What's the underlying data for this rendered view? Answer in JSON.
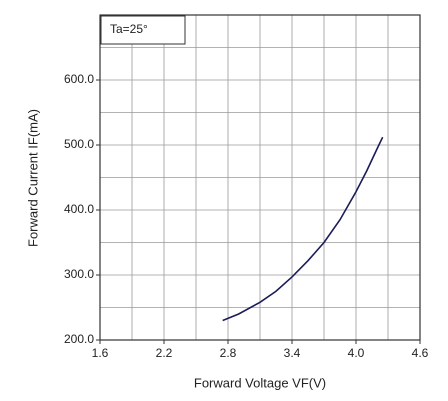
{
  "chart_data": {
    "type": "line",
    "annotation": "Ta=25°",
    "x_label": "Forward Voltage VF(V)",
    "y_label": "Forward Current IF(mA)",
    "x": [
      2.75,
      2.9,
      3.1,
      3.25,
      3.4,
      3.55,
      3.7,
      3.85,
      4.0,
      4.1,
      4.2,
      4.25
    ],
    "series": [
      {
        "color": "#1c1c5a",
        "values": [
          230,
          240,
          258,
          275,
          297,
          322,
          350,
          385,
          428,
          460,
          495,
          512
        ]
      }
    ],
    "xlim": [
      1.6,
      4.6
    ],
    "xticks": [
      1.6,
      2.2,
      2.8,
      3.4,
      {
        "value": 4,
        "label": "4.0"
      },
      4.6
    ],
    "ylim": [
      200,
      700
    ],
    "yticks": [
      {
        "value": 200,
        "label": "200.0"
      },
      {
        "value": 300,
        "label": "300.0"
      },
      {
        "value": 400,
        "label": "400.0"
      },
      {
        "value": 500,
        "label": "500.0"
      },
      {
        "value": 600,
        "label": "600.0"
      }
    ],
    "xgrid": [
      1.9,
      2.2,
      2.5,
      2.8,
      3.1,
      3.4,
      3.7,
      4,
      4.3
    ],
    "ygrid": [
      250,
      300,
      350,
      400,
      450,
      500,
      550,
      600,
      650
    ],
    "grid": true
  }
}
